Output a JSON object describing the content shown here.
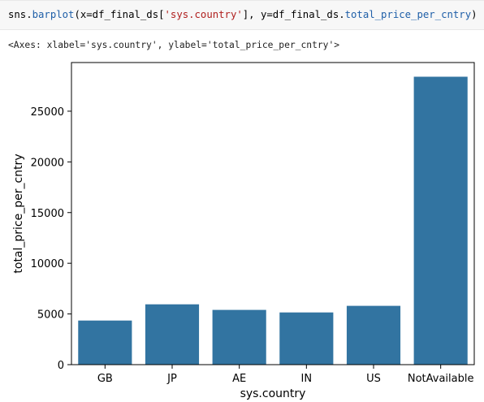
{
  "code_cell": {
    "segments": [
      {
        "text": "sns.",
        "cls": ""
      },
      {
        "text": "barplot",
        "cls": "tok-fn"
      },
      {
        "text": "(x=df_final_ds[",
        "cls": ""
      },
      {
        "text": "'sys.country'",
        "cls": "tok-str"
      },
      {
        "text": "], y=df_final_ds.",
        "cls": ""
      },
      {
        "text": "total_price_per_cntry",
        "cls": "tok-attr"
      },
      {
        "text": ")",
        "cls": ""
      }
    ]
  },
  "output": {
    "repr_text": "<Axes: xlabel='sys.country', ylabel='total_price_per_cntry'>"
  },
  "colors": {
    "bar": "#3274a1",
    "axis": "#000000"
  },
  "chart_data": {
    "type": "bar",
    "categories": [
      "GB",
      "JP",
      "AE",
      "IN",
      "US",
      "NotAvailable"
    ],
    "values": [
      4350,
      5950,
      5400,
      5150,
      5800,
      28400
    ],
    "xlabel": "sys.country",
    "ylabel": "total_price_per_cntry",
    "ylim": [
      0,
      29800
    ],
    "yticks": [
      0,
      5000,
      10000,
      15000,
      20000,
      25000
    ],
    "grid": false
  }
}
